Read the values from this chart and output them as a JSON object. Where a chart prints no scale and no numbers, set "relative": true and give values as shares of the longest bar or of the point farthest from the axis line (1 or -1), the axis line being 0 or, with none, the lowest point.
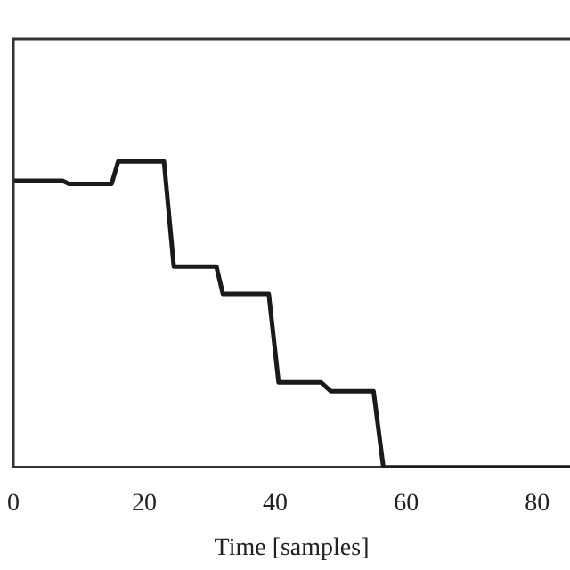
{
  "chart_data": {
    "type": "line",
    "xlabel": "Time [samples]",
    "relative": true,
    "x": [
      0,
      7.5,
      8.5,
      15,
      16,
      23,
      24.5,
      31,
      32,
      39,
      40.5,
      47,
      48.5,
      55,
      56.5,
      85
    ],
    "series": [
      {
        "color": "#1a1a1a",
        "values": [
          0.937,
          0.937,
          0.927,
          0.927,
          1,
          1,
          0.657,
          0.657,
          0.567,
          0.567,
          0.278,
          0.278,
          0.249,
          0.249,
          0,
          0
        ]
      }
    ],
    "xlim": [
      0,
      85
    ],
    "xticks": [
      0,
      20,
      40,
      60,
      80
    ],
    "grid": false,
    "legend": false,
    "marker": "none",
    "line_style": "solid"
  }
}
